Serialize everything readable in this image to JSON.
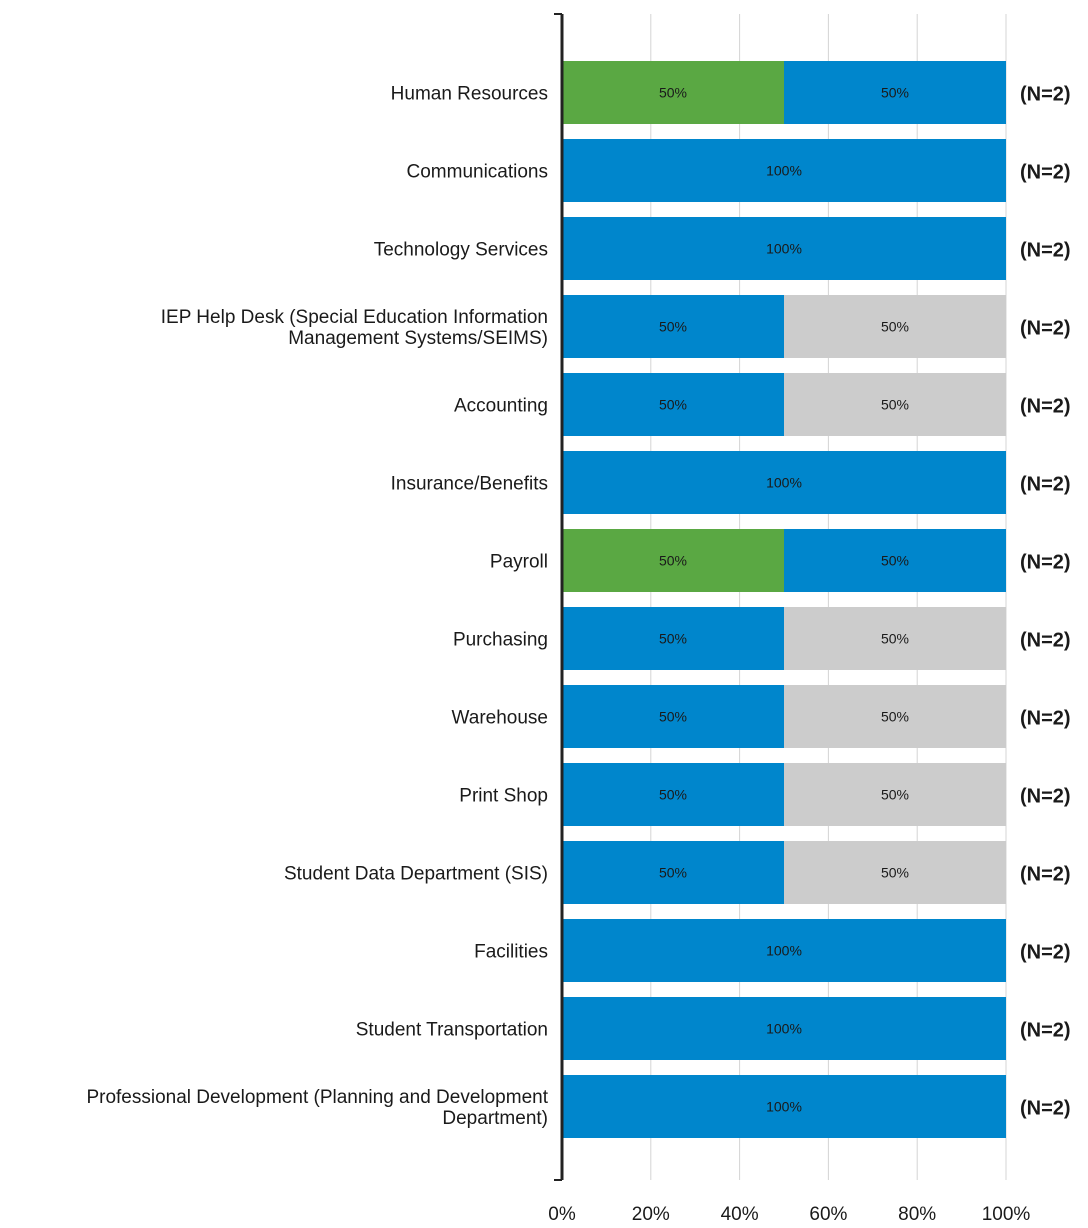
{
  "chart_data": {
    "type": "bar",
    "orientation": "horizontal",
    "stacked": true,
    "categories": [
      "Human Resources",
      "Communications",
      "Technology Services",
      "IEP Help Desk (Special Education Information\nManagement Systems/SEIMS)",
      "Accounting",
      "Insurance/Benefits",
      "Payroll",
      "Purchasing",
      "Warehouse",
      "Print Shop",
      "Student Data Department (SIS)",
      "Facilities",
      "Student Transportation",
      "Professional Development (Planning and Development\nDepartment)"
    ],
    "series": [
      {
        "color": "#5aa843",
        "values": [
          50,
          0,
          0,
          0,
          0,
          0,
          50,
          0,
          0,
          0,
          0,
          0,
          0,
          0
        ]
      },
      {
        "color": "#0086cc",
        "values": [
          50,
          100,
          100,
          50,
          50,
          100,
          50,
          50,
          50,
          50,
          50,
          100,
          100,
          100
        ]
      },
      {
        "color": "#cccccc",
        "values": [
          0,
          0,
          0,
          50,
          50,
          0,
          0,
          50,
          50,
          50,
          50,
          0,
          0,
          0
        ]
      }
    ],
    "data_labels": [
      [
        "50%",
        "50%"
      ],
      [
        "100%"
      ],
      [
        "100%"
      ],
      [
        "50%",
        "50%"
      ],
      [
        "50%",
        "50%"
      ],
      [
        "100%"
      ],
      [
        "50%",
        "50%"
      ],
      [
        "50%",
        "50%"
      ],
      [
        "50%",
        "50%"
      ],
      [
        "50%",
        "50%"
      ],
      [
        "50%",
        "50%"
      ],
      [
        "100%"
      ],
      [
        "100%"
      ],
      [
        "100%"
      ]
    ],
    "n_labels": [
      "(N=2)",
      "(N=2)",
      "(N=2)",
      "(N=2)",
      "(N=2)",
      "(N=2)",
      "(N=2)",
      "(N=2)",
      "(N=2)",
      "(N=2)",
      "(N=2)",
      "(N=2)",
      "(N=2)",
      "(N=2)"
    ],
    "xlim": [
      0,
      100
    ],
    "x_ticks": [
      0,
      20,
      40,
      60,
      80,
      100
    ],
    "x_tick_labels": [
      "0%",
      "20%",
      "40%",
      "60%",
      "80%",
      "100%"
    ],
    "grid": true,
    "legend": "none"
  }
}
